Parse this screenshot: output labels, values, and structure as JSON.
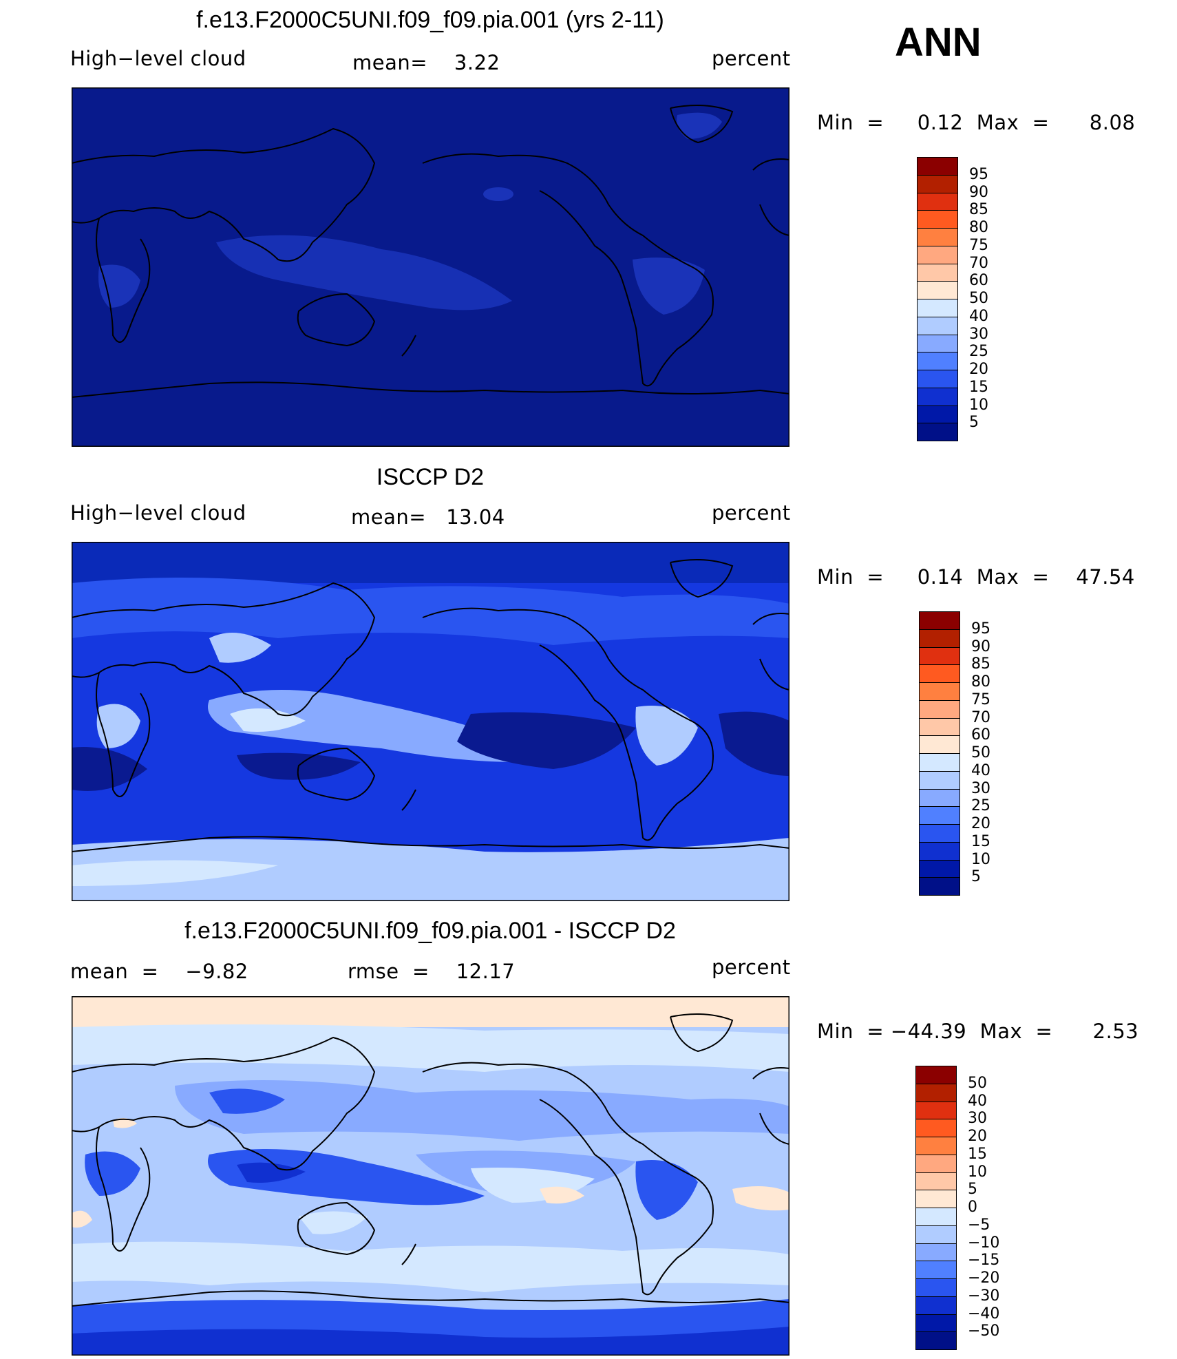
{
  "season": "ANN",
  "panels": [
    {
      "title": "f.e13.F2000C5UNI.f09_f09.pia.001 (yrs 2-11)",
      "left_label": "High−level cloud",
      "center_label": "mean=    3.22",
      "right_label": "percent",
      "minmax": "Min  =     0.12  Max  =      8.08",
      "colorbar_labels": [
        "95",
        "90",
        "85",
        "80",
        "75",
        "70",
        "60",
        "50",
        "40",
        "30",
        "25",
        "20",
        "15",
        "10",
        "5"
      ],
      "colorbar_colors": [
        "#8b0000",
        "#b22000",
        "#e03010",
        "#ff5a20",
        "#ff8040",
        "#ffa880",
        "#ffc8a8",
        "#ffe8d4",
        "#d4e8ff",
        "#b0ccff",
        "#88aaff",
        "#5080ff",
        "#2a55f0",
        "#1030d0",
        "#0018a8",
        "#001088"
      ],
      "background": "#081a8c"
    },
    {
      "title": "ISCCP D2",
      "left_label": "High−level cloud",
      "center_label": "mean=   13.04",
      "right_label": "percent",
      "minmax": "Min  =     0.14  Max  =    47.54",
      "colorbar_labels": [
        "95",
        "90",
        "85",
        "80",
        "75",
        "70",
        "60",
        "50",
        "40",
        "30",
        "25",
        "20",
        "15",
        "10",
        "5"
      ],
      "colorbar_colors": [
        "#8b0000",
        "#b22000",
        "#e03010",
        "#ff5a20",
        "#ff8040",
        "#ffa880",
        "#ffc8a8",
        "#ffe8d4",
        "#d4e8ff",
        "#b0ccff",
        "#88aaff",
        "#5080ff",
        "#2a55f0",
        "#1030d0",
        "#0018a8",
        "#001088"
      ],
      "background": "#1030d0"
    },
    {
      "title": "f.e13.F2000C5UNI.f09_f09.pia.001 - ISCCP D2",
      "left_label": "mean  =    −9.82",
      "center_label": "rmse  =    12.17",
      "right_label": "percent",
      "minmax": "Min  = −44.39  Max  =      2.53",
      "colorbar_labels": [
        "50",
        "40",
        "30",
        "20",
        "15",
        "10",
        "5",
        "0",
        "−5",
        "−10",
        "−15",
        "−20",
        "−30",
        "−40",
        "−50"
      ],
      "colorbar_colors": [
        "#8b0000",
        "#b22000",
        "#e03010",
        "#ff5a20",
        "#ff8040",
        "#ffa880",
        "#ffc8a8",
        "#ffe8d4",
        "#d4e8ff",
        "#b0ccff",
        "#88aaff",
        "#5080ff",
        "#2a55f0",
        "#1030d0",
        "#0018a8",
        "#001088"
      ],
      "background": "#b0ccff"
    }
  ]
}
